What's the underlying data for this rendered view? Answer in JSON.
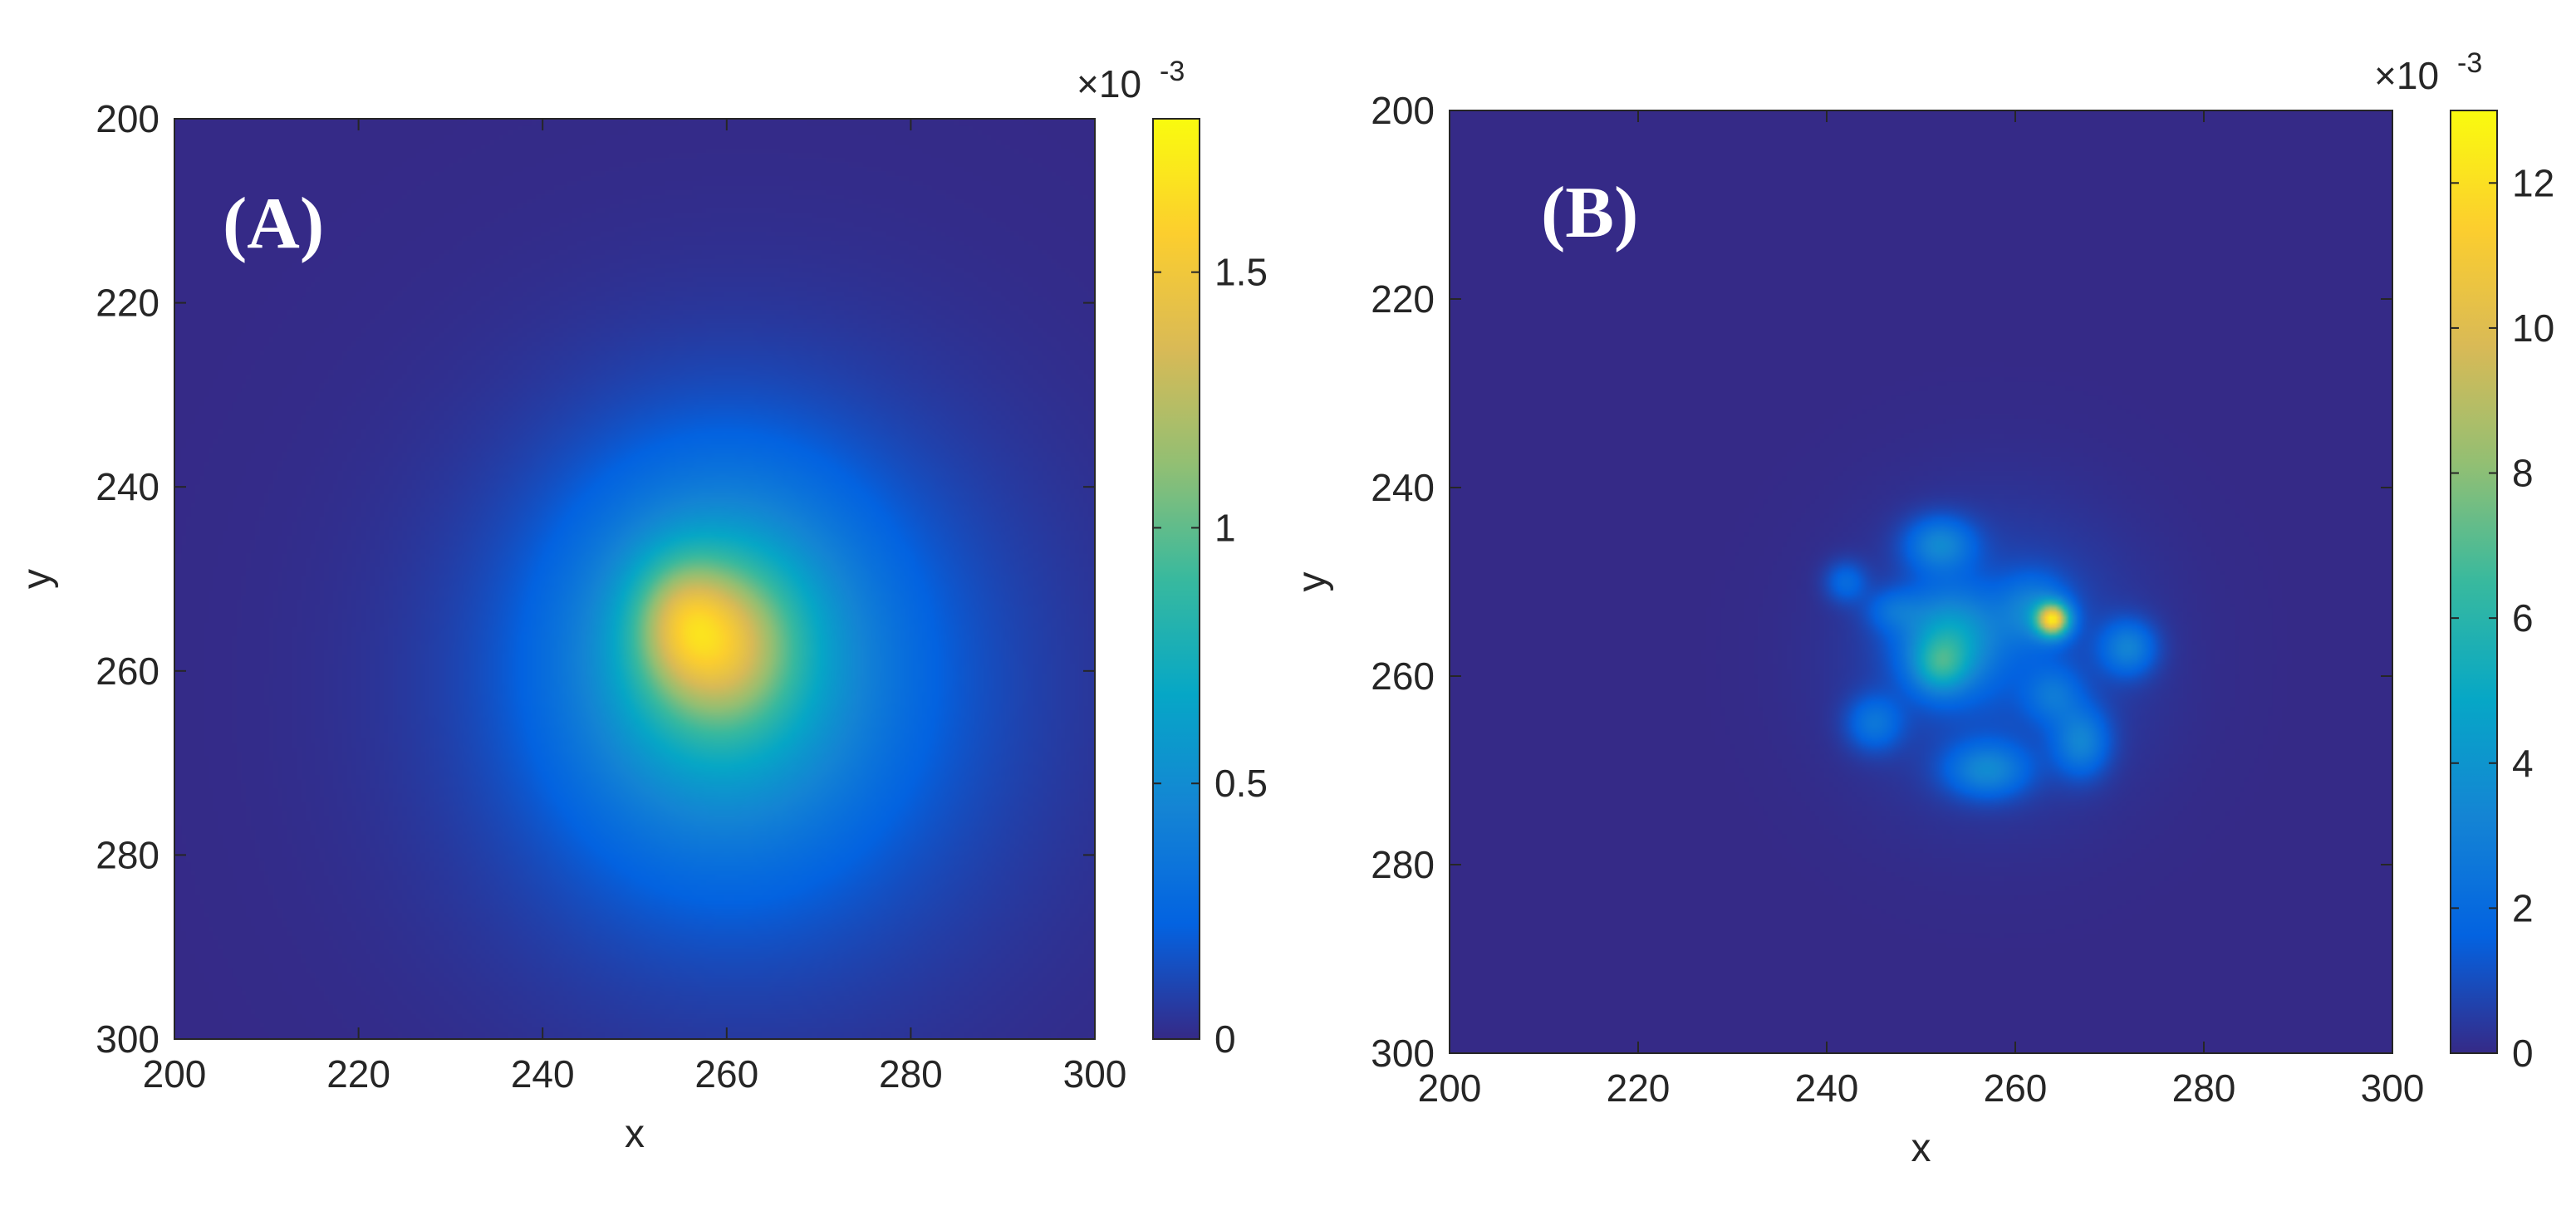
{
  "chart_data": [
    {
      "type": "heatmap",
      "panel_label": "(A)",
      "xlabel": "x",
      "ylabel": "y",
      "xlim": [
        200,
        300
      ],
      "ylim": [
        200,
        300
      ],
      "y_reversed": true,
      "xticks": [
        "200",
        "220",
        "240",
        "260",
        "280",
        "300"
      ],
      "yticks": [
        "200",
        "220",
        "240",
        "260",
        "280",
        "300"
      ],
      "colorbar": {
        "multiplier": "×10",
        "exponent": "-3",
        "range": [
          0,
          0.0018
        ],
        "ticks": [
          "0",
          "0.5",
          "1",
          "1.5"
        ],
        "tick_values": [
          0,
          0.0005,
          0.001,
          0.0015
        ],
        "colormap": "parula"
      },
      "background_value": 0,
      "blobs": [
        {
          "x": 262,
          "y": 262,
          "sx": 20,
          "sy": 21,
          "peak": 0.0003
        },
        {
          "x": 259,
          "y": 258,
          "sx": 11,
          "sy": 13,
          "peak": 0.00055
        },
        {
          "x": 259,
          "y": 257,
          "sx": 5.5,
          "sy": 6,
          "peak": 0.00065
        },
        {
          "x": 255,
          "y": 254,
          "sx": 3.5,
          "sy": 4.5,
          "peak": 0.00035
        }
      ]
    },
    {
      "type": "heatmap",
      "panel_label": "(B)",
      "xlabel": "x",
      "ylabel": "y",
      "xlim": [
        200,
        300
      ],
      "ylim": [
        200,
        300
      ],
      "y_reversed": true,
      "xticks": [
        "200",
        "220",
        "240",
        "260",
        "280",
        "300"
      ],
      "yticks": [
        "200",
        "220",
        "240",
        "260",
        "280",
        "300"
      ],
      "colorbar": {
        "multiplier": "×10",
        "exponent": "-3",
        "range": [
          0,
          0.013
        ],
        "ticks": [
          "0",
          "2",
          "4",
          "6",
          "8",
          "10",
          "12"
        ],
        "tick_values": [
          0,
          0.002,
          0.004,
          0.006,
          0.008,
          0.01,
          0.012
        ],
        "colormap": "parula"
      },
      "background_value": 0,
      "blobs": [
        {
          "x": 258,
          "y": 258,
          "sx": 10,
          "sy": 10,
          "peak": 0.0012
        },
        {
          "x": 253,
          "y": 256,
          "sx": 3.5,
          "sy": 3.5,
          "peak": 0.004
        },
        {
          "x": 252,
          "y": 259,
          "sx": 2.0,
          "sy": 2.0,
          "peak": 0.003
        },
        {
          "x": 252,
          "y": 246,
          "sx": 2.5,
          "sy": 2.0,
          "peak": 0.003
        },
        {
          "x": 264,
          "y": 254,
          "sx": 1.2,
          "sy": 1.2,
          "peak": 0.01
        },
        {
          "x": 262,
          "y": 253,
          "sx": 2.5,
          "sy": 2.5,
          "peak": 0.0025
        },
        {
          "x": 272,
          "y": 257,
          "sx": 2.0,
          "sy": 2.0,
          "peak": 0.0028
        },
        {
          "x": 257,
          "y": 270,
          "sx": 3.0,
          "sy": 2.0,
          "peak": 0.003
        },
        {
          "x": 267,
          "y": 267,
          "sx": 2.0,
          "sy": 2.5,
          "peak": 0.0028
        },
        {
          "x": 245,
          "y": 265,
          "sx": 2.0,
          "sy": 2.0,
          "peak": 0.0022
        },
        {
          "x": 242,
          "y": 250,
          "sx": 1.5,
          "sy": 1.5,
          "peak": 0.0018
        },
        {
          "x": 247,
          "y": 253,
          "sx": 2.0,
          "sy": 1.5,
          "peak": 0.0015
        },
        {
          "x": 264,
          "y": 262,
          "sx": 2.0,
          "sy": 2.0,
          "peak": 0.0018
        }
      ]
    }
  ]
}
